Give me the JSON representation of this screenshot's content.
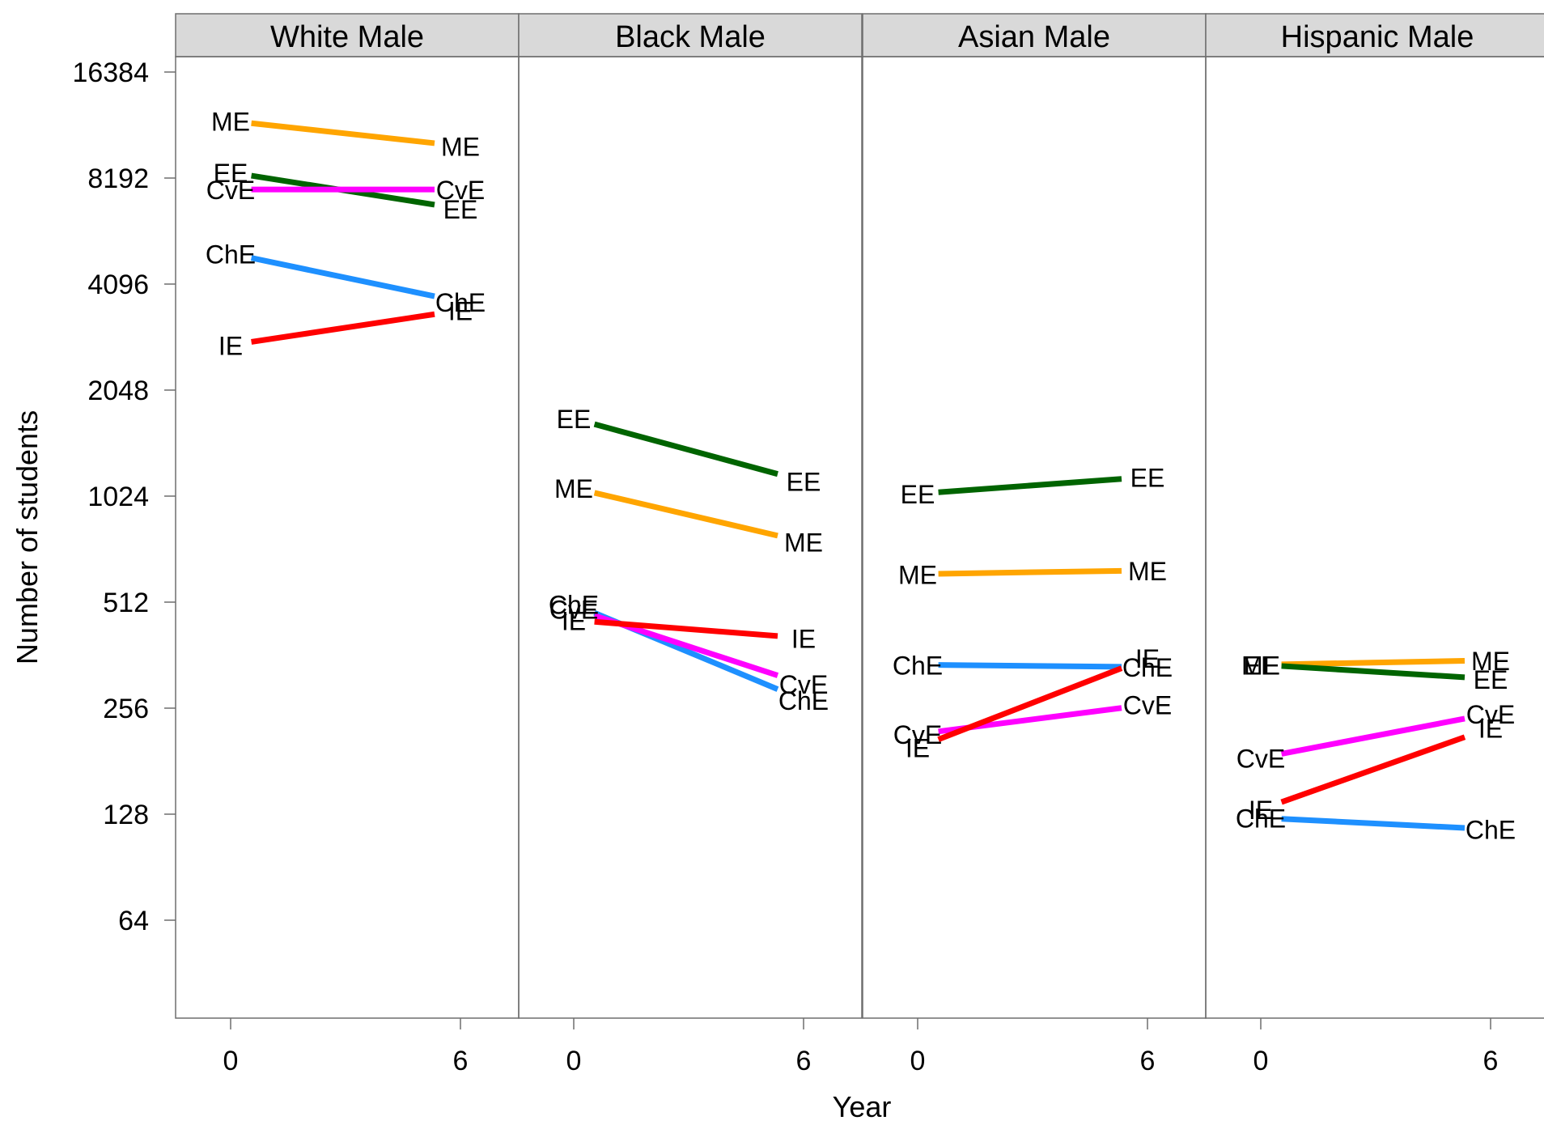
{
  "chart_data": {
    "type": "line",
    "xlabel": "Year",
    "ylabel": "Number of students",
    "y_scale": "log2",
    "ylim": [
      38,
      19000
    ],
    "y_ticks": [
      64,
      128,
      256,
      512,
      1024,
      2048,
      4096,
      8192,
      16384
    ],
    "y_tick_labels": [
      "64",
      "128",
      "256",
      "512",
      "1024",
      "2048",
      "4096",
      "8192",
      "16384"
    ],
    "x_ticks": [
      0,
      6
    ],
    "x_tick_labels": [
      "0",
      "6"
    ],
    "panels": [
      {
        "title": "White Male",
        "series": [
          {
            "name": "ME",
            "x": [
              0,
              6
            ],
            "y": [
              11900,
              10100
            ]
          },
          {
            "name": "EE",
            "x": [
              0,
              6
            ],
            "y": [
              8500,
              6700
            ]
          },
          {
            "name": "CvE",
            "x": [
              0,
              6
            ],
            "y": [
              7600,
              7600
            ]
          },
          {
            "name": "ChE",
            "x": [
              0,
              6
            ],
            "y": [
              5000,
              3650
            ]
          },
          {
            "name": "IE",
            "x": [
              0,
              6
            ],
            "y": [
              2750,
              3450
            ]
          }
        ]
      },
      {
        "title": "Black Male",
        "series": [
          {
            "name": "EE",
            "x": [
              0,
              6
            ],
            "y": [
              1700,
              1130
            ]
          },
          {
            "name": "ME",
            "x": [
              0,
              6
            ],
            "y": [
              1080,
              760
            ]
          },
          {
            "name": "ChE",
            "x": [
              0,
              6
            ],
            "y": [
              505,
              270
            ]
          },
          {
            "name": "CvE",
            "x": [
              0,
              6
            ],
            "y": [
              490,
              300
            ]
          },
          {
            "name": "IE",
            "x": [
              0,
              6
            ],
            "y": [
              455,
              405
            ]
          }
        ]
      },
      {
        "title": "Asian Male",
        "series": [
          {
            "name": "EE",
            "x": [
              0,
              6
            ],
            "y": [
              1040,
              1160
            ]
          },
          {
            "name": "ME",
            "x": [
              0,
              6
            ],
            "y": [
              615,
              630
            ]
          },
          {
            "name": "ChE",
            "x": [
              0,
              6
            ],
            "y": [
              340,
              335
            ]
          },
          {
            "name": "CvE",
            "x": [
              0,
              6
            ],
            "y": [
              216,
              262
            ]
          },
          {
            "name": "IE",
            "x": [
              0,
              6
            ],
            "y": [
              198,
              355
            ]
          }
        ]
      },
      {
        "title": "Hispanic Male",
        "series": [
          {
            "name": "ME",
            "x": [
              0,
              6
            ],
            "y": [
              340,
              350
            ]
          },
          {
            "name": "EE",
            "x": [
              0,
              6
            ],
            "y": [
              340,
              310
            ]
          },
          {
            "name": "CvE",
            "x": [
              0,
              6
            ],
            "y": [
              185,
              247
            ]
          },
          {
            "name": "IE",
            "x": [
              0,
              6
            ],
            "y": [
              132,
              225
            ]
          },
          {
            "name": "ChE",
            "x": [
              0,
              6
            ],
            "y": [
              125,
              116
            ]
          }
        ]
      }
    ],
    "colors": {
      "ME": "#ffa500",
      "EE": "#006400",
      "CvE": "#ff00ff",
      "ChE": "#1e90ff",
      "IE": "#ff0000"
    },
    "grid": false,
    "legend": "none (series labelled directly at line ends)"
  }
}
